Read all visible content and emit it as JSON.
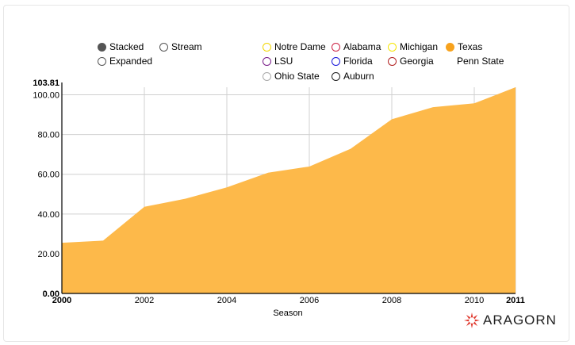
{
  "controls": {
    "style_options": [
      {
        "label": "Stacked",
        "selected": true
      },
      {
        "label": "Stream",
        "selected": false
      },
      {
        "label": "Expanded",
        "selected": false
      }
    ]
  },
  "legend": [
    {
      "name": "Notre Dame",
      "color": "#f2d600",
      "active": false
    },
    {
      "name": "Alabama",
      "color": "#cc2244",
      "active": false
    },
    {
      "name": "Michigan",
      "color": "#f6e500",
      "active": false
    },
    {
      "name": "Texas",
      "color": "#f7a21d",
      "active": true
    },
    {
      "name": "LSU",
      "color": "#7a1f8a",
      "active": false
    },
    {
      "name": "Florida",
      "color": "#1a1adb",
      "active": false
    },
    {
      "name": "Georgia",
      "color": "#b22222",
      "active": false
    },
    {
      "name": "Penn State",
      "color": "#ffffff",
      "active": false,
      "no_marker": true
    },
    {
      "name": "Ohio State",
      "color": "#aaaaaa",
      "active": false
    },
    {
      "name": "Auburn",
      "color": "#222222",
      "active": false
    }
  ],
  "chart_data": {
    "type": "area",
    "xlabel": "Season",
    "ylabel": "",
    "xlim": [
      2000,
      2011
    ],
    "ylim": [
      0,
      103.81
    ],
    "y_ticks": [
      "0.00",
      "20.00",
      "40.00",
      "60.00",
      "80.00",
      "100.00",
      "103.81"
    ],
    "x_ticks": [
      "2000",
      "2002",
      "2004",
      "2006",
      "2008",
      "2010",
      "2011"
    ],
    "grid": true,
    "series": [
      {
        "name": "Texas",
        "color": "#fdb94a",
        "x": [
          2000,
          2001,
          2002,
          2003,
          2004,
          2005,
          2006,
          2007,
          2008,
          2009,
          2010,
          2011
        ],
        "values": [
          25.5,
          26.6,
          43.6,
          47.7,
          53.4,
          60.8,
          63.9,
          72.8,
          87.7,
          93.8,
          95.7,
          103.81
        ]
      }
    ]
  },
  "logo": {
    "text": "ARAGORN",
    "color": "#e03a2f"
  }
}
